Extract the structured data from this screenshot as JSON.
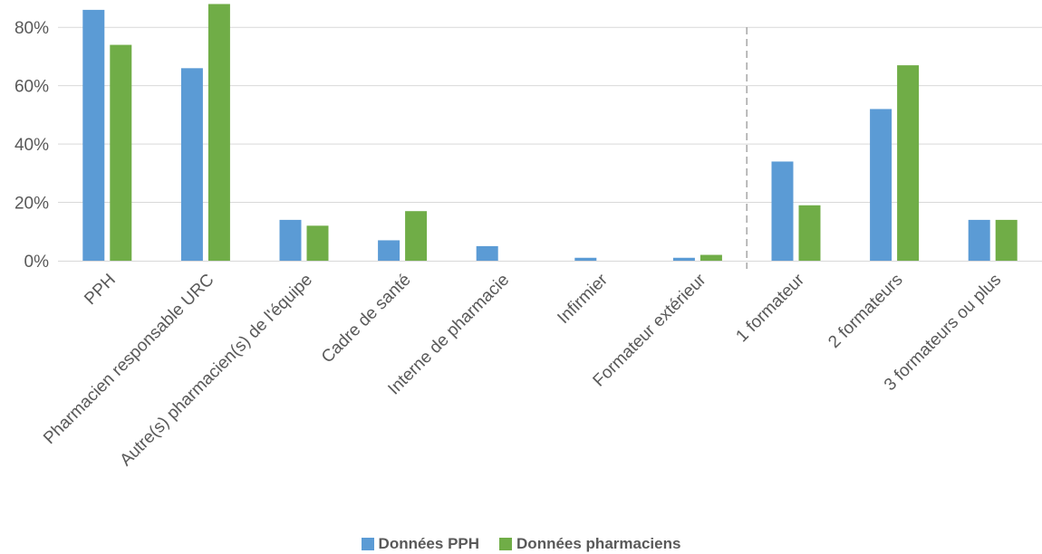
{
  "chart_data": {
    "type": "bar",
    "title": "",
    "xlabel": "",
    "ylabel": "",
    "ylim": [
      0,
      90
    ],
    "ytick_values": [
      0,
      20,
      40,
      60,
      80
    ],
    "ytick_labels": [
      "0%",
      "20%",
      "40%",
      "60%",
      "80%"
    ],
    "grid": true,
    "legend_position": "bottom",
    "categories": [
      "PPH",
      "Pharmacien responsable URC",
      "Autre(s) pharmacien(s) de l'équipe",
      "Cadre de santé",
      "Interne de pharmacie",
      "Infirmier",
      "Formateur extérieur",
      "1 formateur",
      "2 formateurs",
      "3 formateurs ou plus"
    ],
    "series": [
      {
        "name": "Données PPH",
        "color": "#5B9BD5",
        "values": [
          86,
          66,
          14,
          7,
          5,
          1,
          1,
          34,
          52,
          14
        ]
      },
      {
        "name": "Données pharmaciens",
        "color": "#70AD47",
        "values": [
          74,
          88,
          12,
          17,
          0,
          0,
          2,
          19,
          67,
          14
        ]
      }
    ],
    "separator_after_category": 6
  }
}
